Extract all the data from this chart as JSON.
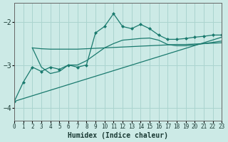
{
  "xlabel": "Humidex (Indice chaleur)",
  "background_color": "#cceae6",
  "grid_color": "#aad4cf",
  "line_color": "#1a7a6e",
  "xlim": [
    0,
    23
  ],
  "ylim": [
    -4.3,
    -1.55
  ],
  "yticks": [
    -4,
    -3,
    -2
  ],
  "xticks": [
    0,
    1,
    2,
    3,
    4,
    5,
    6,
    7,
    8,
    9,
    10,
    11,
    12,
    13,
    14,
    15,
    16,
    17,
    18,
    19,
    20,
    21,
    22,
    23
  ],
  "series": [
    {
      "x": [
        0,
        1,
        2,
        3,
        4,
        5,
        6,
        7,
        8,
        9,
        10,
        11,
        12,
        13,
        14,
        15,
        16,
        17,
        18,
        19,
        20,
        21,
        22,
        23
      ],
      "y": [
        -3.85,
        -3.4,
        -3.05,
        -3.15,
        -3.05,
        -3.1,
        -3.0,
        -3.05,
        -3.0,
        -2.25,
        -2.1,
        -1.8,
        -2.1,
        -2.15,
        -2.05,
        -2.15,
        -2.3,
        -2.4,
        -2.4,
        -2.38,
        -2.35,
        -2.33,
        -2.3,
        -2.3
      ],
      "marker": true
    },
    {
      "x": [
        2,
        3,
        4,
        5,
        6,
        7,
        8,
        9,
        10,
        11,
        12,
        13,
        14,
        15,
        16,
        17,
        18,
        19,
        20,
        21,
        22,
        23
      ],
      "y": [
        -2.6,
        -2.62,
        -2.63,
        -2.63,
        -2.63,
        -2.63,
        -2.62,
        -2.61,
        -2.6,
        -2.59,
        -2.58,
        -2.57,
        -2.56,
        -2.55,
        -2.54,
        -2.53,
        -2.52,
        -2.52,
        -2.51,
        -2.5,
        -2.49,
        -2.48
      ],
      "marker": false
    },
    {
      "x": [
        2,
        3,
        4,
        5,
        6,
        7,
        8,
        9,
        10,
        11,
        12,
        13,
        14,
        15,
        16,
        17,
        18,
        19,
        20,
        21,
        22,
        23
      ],
      "y": [
        -2.6,
        -3.05,
        -3.2,
        -3.15,
        -3.0,
        -3.0,
        -2.9,
        -2.75,
        -2.6,
        -2.5,
        -2.42,
        -2.4,
        -2.38,
        -2.37,
        -2.42,
        -2.52,
        -2.55,
        -2.55,
        -2.53,
        -2.5,
        -2.47,
        -2.44
      ],
      "marker": false
    },
    {
      "x": [
        0,
        23
      ],
      "y": [
        -3.85,
        -2.35
      ],
      "marker": false
    }
  ]
}
